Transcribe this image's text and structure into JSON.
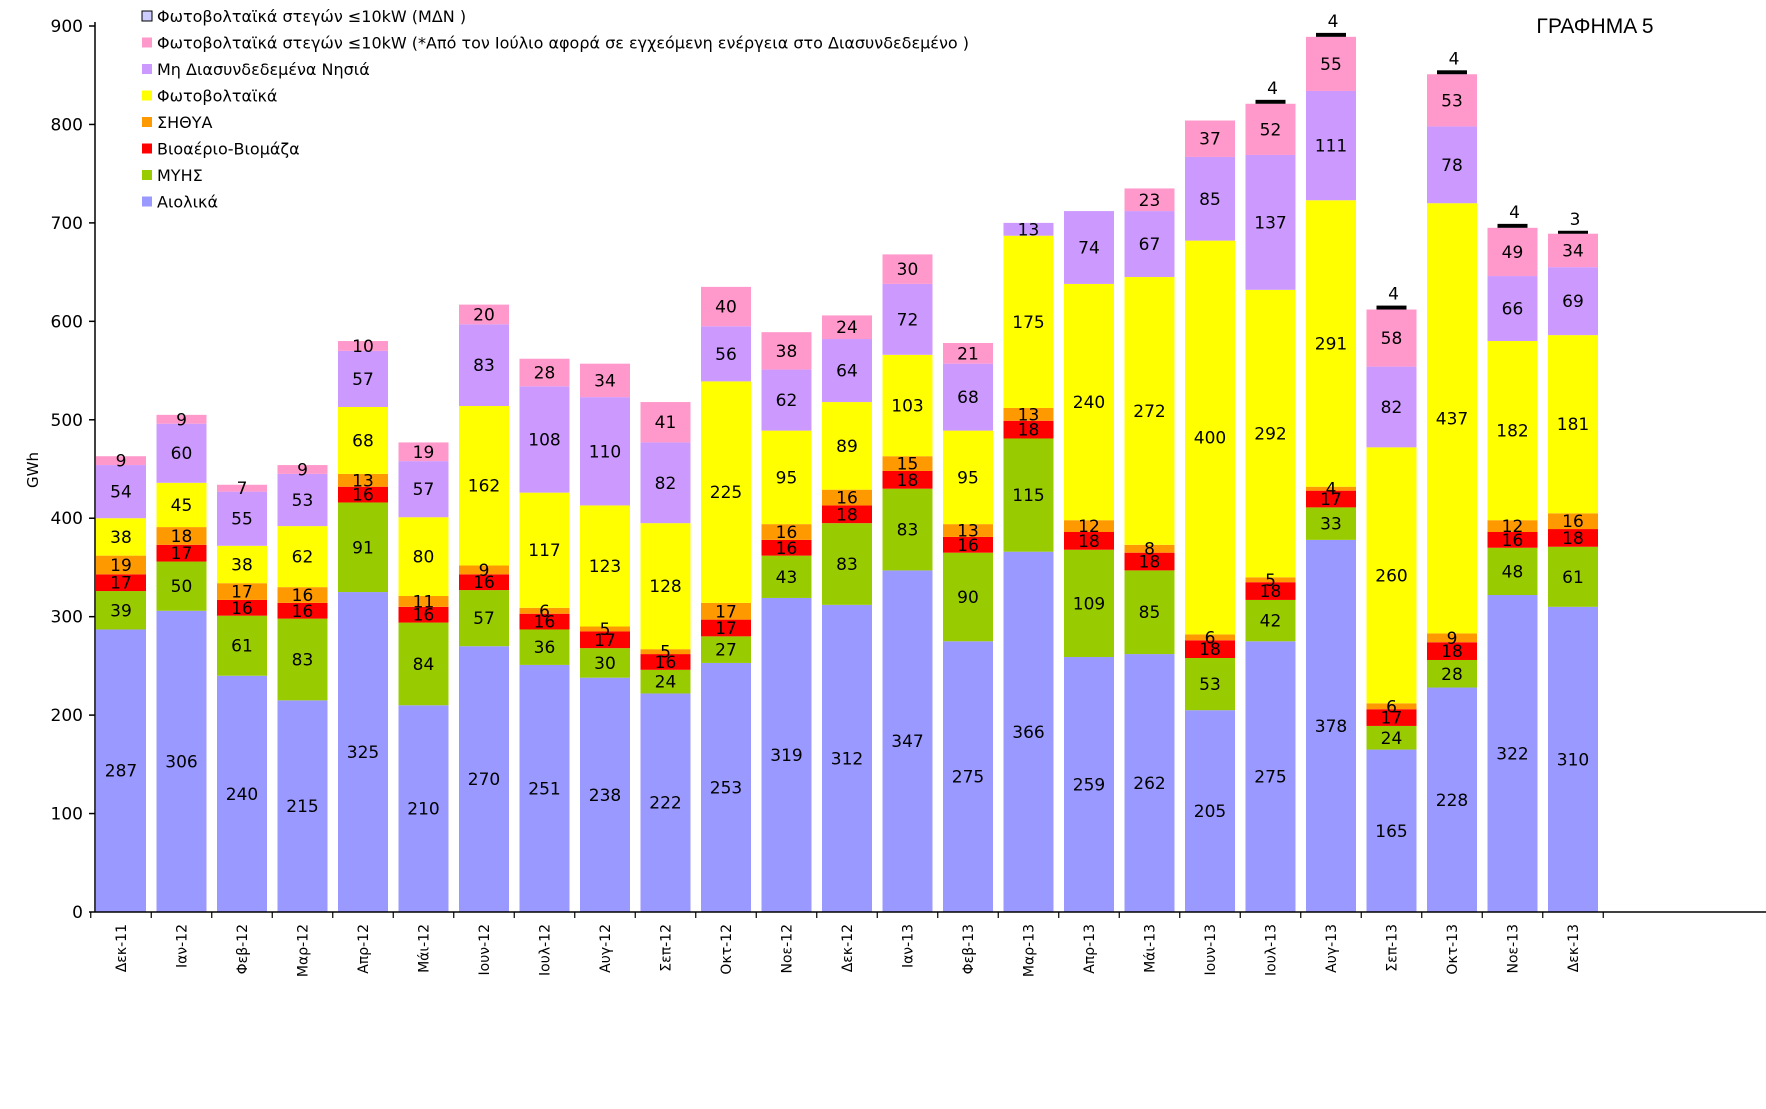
{
  "chart_data": {
    "type": "bar",
    "stacked": true,
    "title": "ΓΡΑΦΗΜΑ 5",
    "ylabel": "GWh",
    "ylim": [
      0,
      900
    ],
    "yticks": [
      0,
      100,
      200,
      300,
      400,
      500,
      600,
      700,
      800,
      900
    ],
    "legend_position": "top-left",
    "categories": [
      "Δεκ-11",
      "Ιαν-12",
      "Φεβ-12",
      "Μαρ-12",
      "Απρ-12",
      "Μάι-12",
      "Ιουν-12",
      "Ιουλ-12",
      "Αυγ-12",
      "Σεπ-12",
      "Οκτ-12",
      "Νοε-12",
      "Δεκ-12",
      "Ιαν-13",
      "Φεβ-13",
      "Μαρ-13",
      "Απρ-13",
      "Μάι-13",
      "Ιουν-13",
      "Ιουλ-13",
      "Αυγ-13",
      "Σεπ-13",
      "Οκτ-13",
      "Νοε-13",
      "Δεκ-13"
    ],
    "series": [
      {
        "name": "Αιολικά",
        "color": "#9999ff",
        "values": [
          287,
          306,
          240,
          215,
          325,
          210,
          270,
          251,
          238,
          222,
          253,
          319,
          312,
          347,
          275,
          366,
          259,
          262,
          205,
          275,
          378,
          165,
          228,
          322,
          310
        ]
      },
      {
        "name": "ΜΥΗΣ",
        "color": "#99cc00",
        "values": [
          39,
          50,
          61,
          83,
          91,
          84,
          57,
          36,
          30,
          24,
          27,
          43,
          83,
          83,
          90,
          115,
          109,
          85,
          53,
          42,
          33,
          24,
          28,
          48,
          61
        ]
      },
      {
        "name": "Βιοαέριο-Βιομάζα",
        "color": "#ff0000",
        "values": [
          17,
          17,
          16,
          16,
          16,
          16,
          16,
          16,
          17,
          16,
          17,
          16,
          18,
          18,
          16,
          18,
          18,
          18,
          18,
          18,
          17,
          17,
          18,
          16,
          18
        ]
      },
      {
        "name": "ΣΗΘΥΑ",
        "color": "#ff9900",
        "values": [
          19,
          18,
          17,
          16,
          13,
          11,
          9,
          6,
          5,
          5,
          17,
          16,
          16,
          15,
          13,
          13,
          12,
          8,
          6,
          5,
          4,
          6,
          9,
          12,
          16
        ]
      },
      {
        "name": "Φωτοβολταϊκά",
        "color": "#ffff00",
        "values": [
          38,
          45,
          38,
          62,
          68,
          80,
          162,
          117,
          123,
          128,
          225,
          95,
          89,
          103,
          95,
          175,
          240,
          272,
          400,
          292,
          291,
          260,
          437,
          182,
          181
        ]
      },
      {
        "name": "Μη Διασυνδεδεμένα Νησιά",
        "color": "#cc99ff",
        "values": [
          54,
          60,
          55,
          53,
          57,
          57,
          83,
          108,
          110,
          82,
          56,
          62,
          64,
          72,
          68,
          13,
          74,
          67,
          85,
          137,
          111,
          82,
          78,
          66,
          69
        ]
      },
      {
        "name": "Φωτοβολταϊκά στεγών ≤10kW (*Από τον Ιούλιο αφορά σε εγχεόμενη ενέργεια στο Διασυνδεδεμένο )",
        "color": "#ff99cc",
        "values": [
          9,
          9,
          7,
          9,
          10,
          19,
          20,
          28,
          34,
          41,
          40,
          38,
          24,
          30,
          21,
          null,
          null,
          23,
          37,
          52,
          55,
          58,
          53,
          49,
          34
        ]
      },
      {
        "name": "Φωτοβολταϊκά στεγών ≤10kW (ΜΔΝ )",
        "color": "#ccccff",
        "values": [
          null,
          null,
          null,
          null,
          null,
          null,
          null,
          null,
          null,
          null,
          null,
          null,
          null,
          null,
          null,
          null,
          null,
          null,
          null,
          4,
          4,
          4,
          4,
          4,
          3
        ]
      }
    ]
  }
}
